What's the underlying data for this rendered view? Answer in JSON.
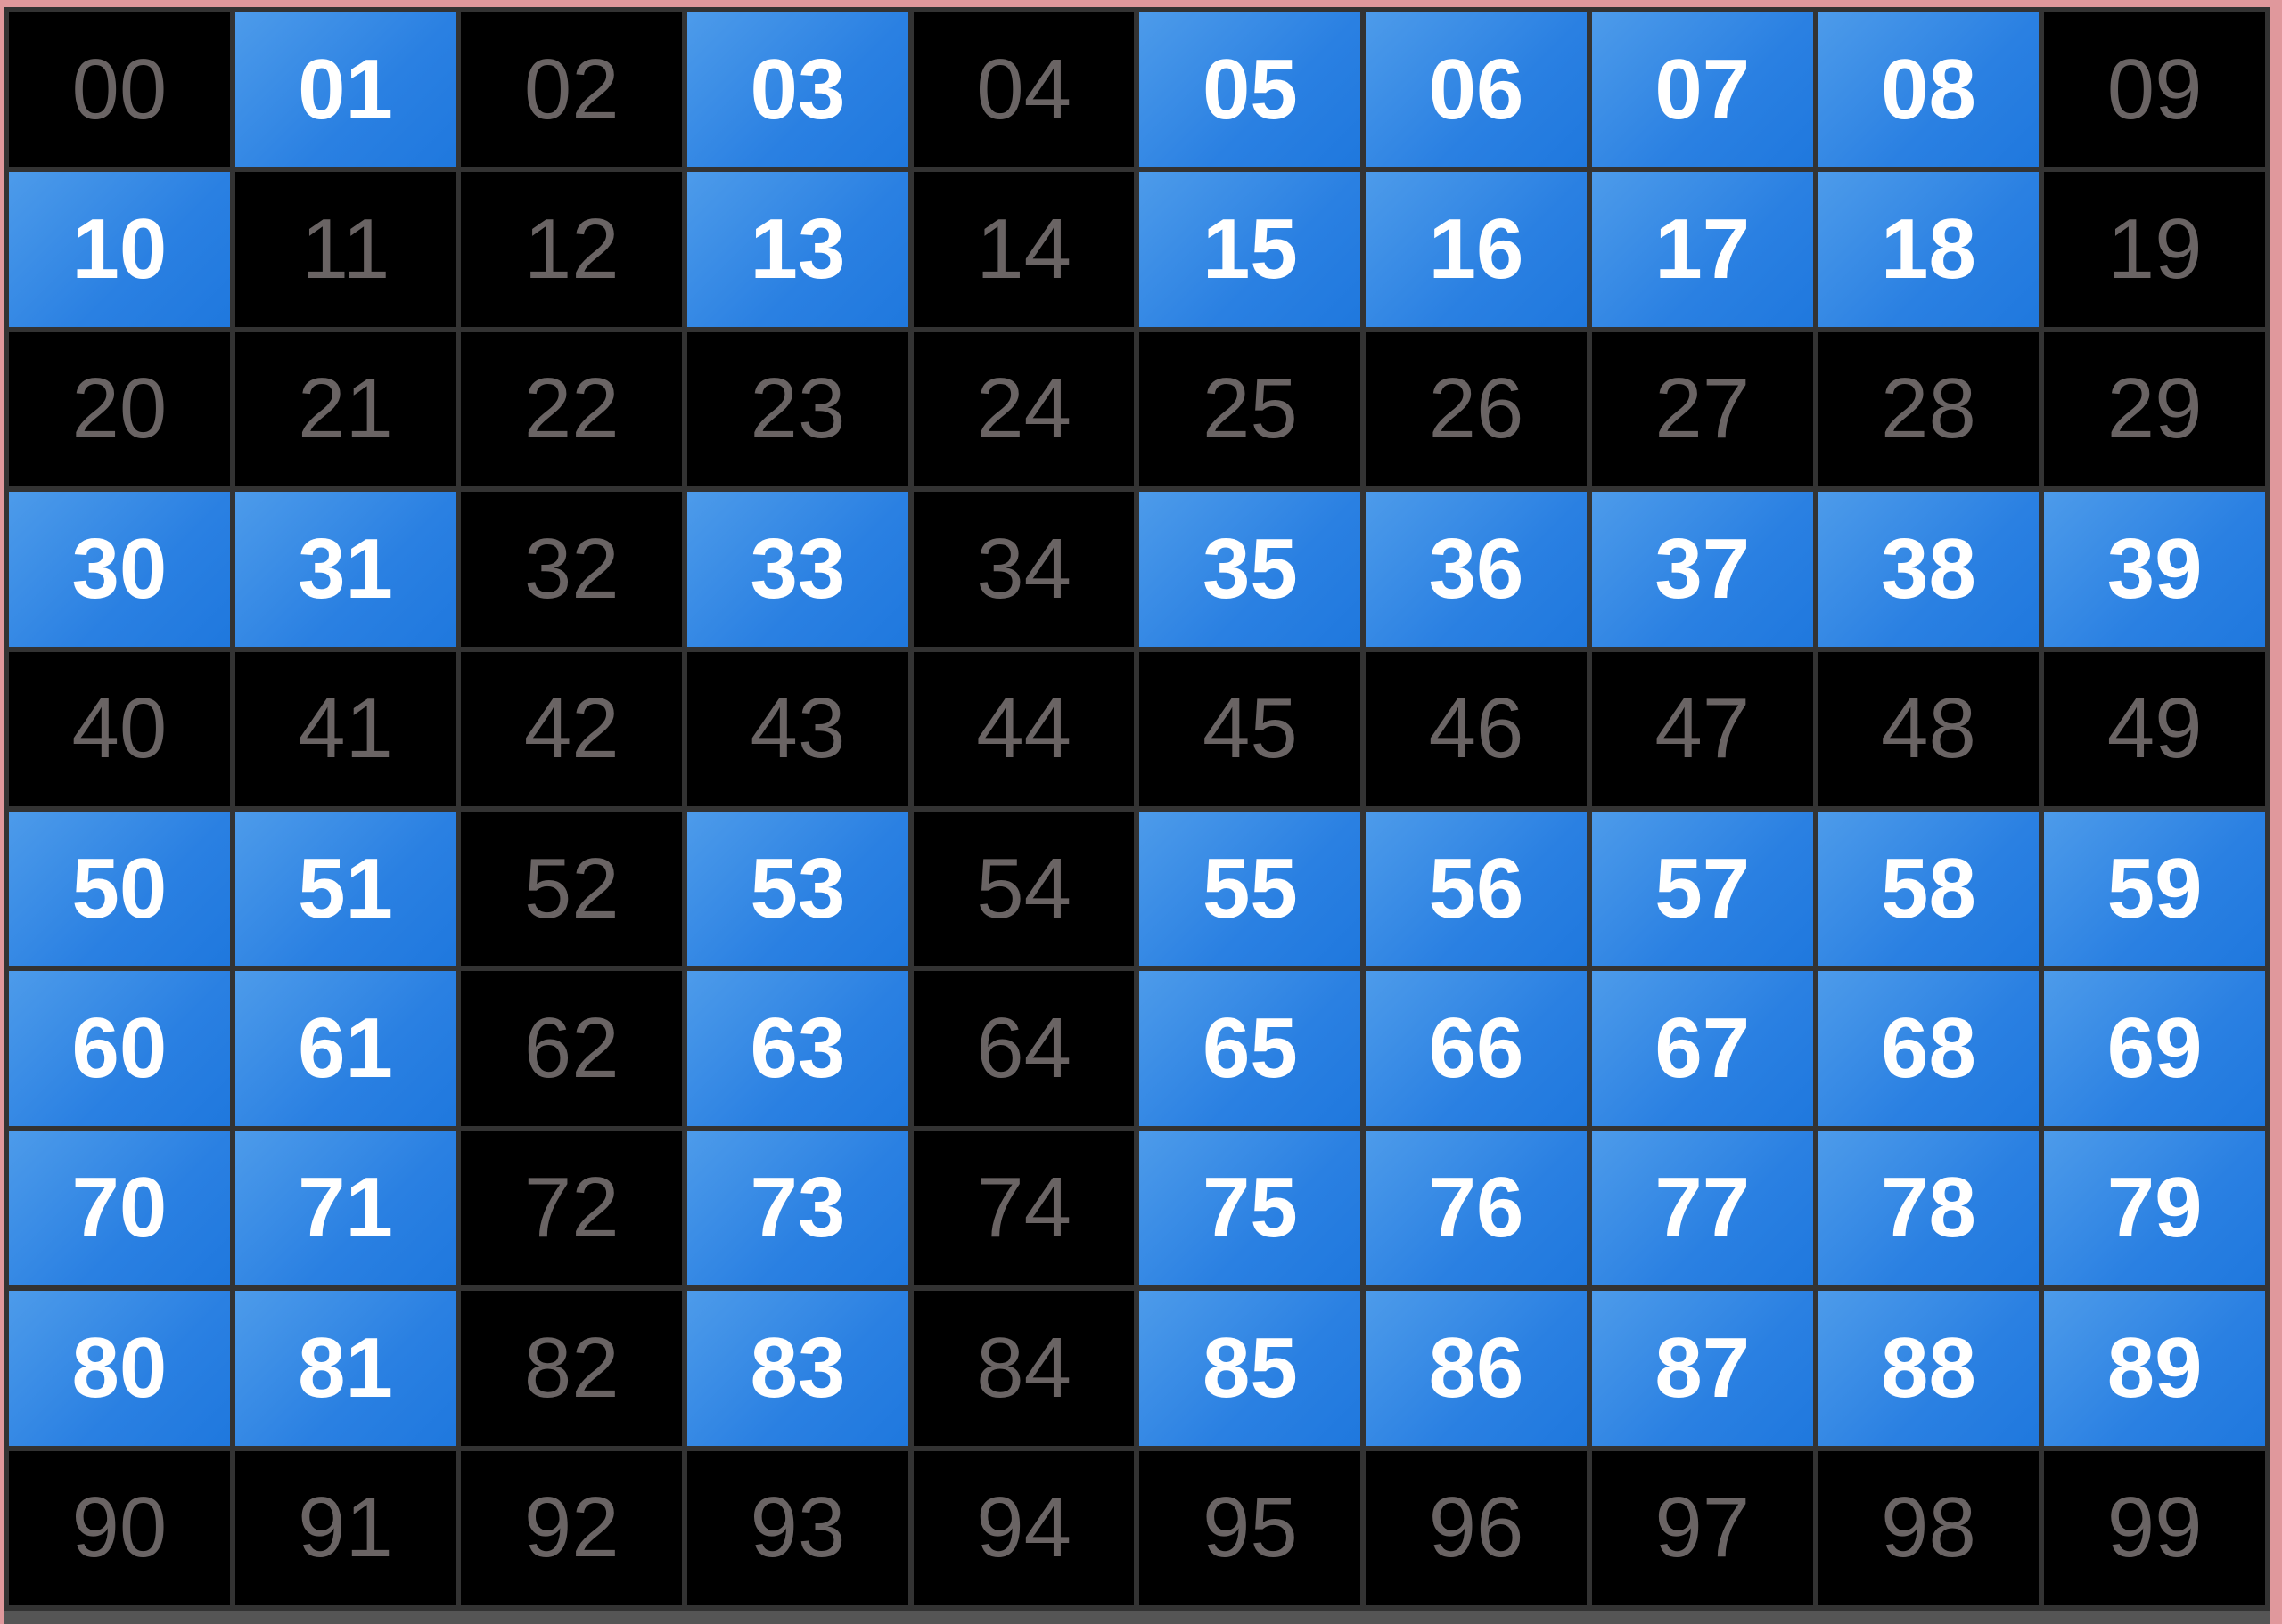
{
  "grid": {
    "colors": {
      "selected": "#2a80e2",
      "unselected": "#000000",
      "selected_text": "#ffffff",
      "unselected_text": "#6a6464"
    },
    "cells": [
      {
        "label": "00",
        "selected": false
      },
      {
        "label": "01",
        "selected": true
      },
      {
        "label": "02",
        "selected": false
      },
      {
        "label": "03",
        "selected": true
      },
      {
        "label": "04",
        "selected": false
      },
      {
        "label": "05",
        "selected": true
      },
      {
        "label": "06",
        "selected": true
      },
      {
        "label": "07",
        "selected": true
      },
      {
        "label": "08",
        "selected": true
      },
      {
        "label": "09",
        "selected": false
      },
      {
        "label": "10",
        "selected": true
      },
      {
        "label": "11",
        "selected": false
      },
      {
        "label": "12",
        "selected": false
      },
      {
        "label": "13",
        "selected": true
      },
      {
        "label": "14",
        "selected": false
      },
      {
        "label": "15",
        "selected": true
      },
      {
        "label": "16",
        "selected": true
      },
      {
        "label": "17",
        "selected": true
      },
      {
        "label": "18",
        "selected": true
      },
      {
        "label": "19",
        "selected": false
      },
      {
        "label": "20",
        "selected": false
      },
      {
        "label": "21",
        "selected": false
      },
      {
        "label": "22",
        "selected": false
      },
      {
        "label": "23",
        "selected": false
      },
      {
        "label": "24",
        "selected": false
      },
      {
        "label": "25",
        "selected": false
      },
      {
        "label": "26",
        "selected": false
      },
      {
        "label": "27",
        "selected": false
      },
      {
        "label": "28",
        "selected": false
      },
      {
        "label": "29",
        "selected": false
      },
      {
        "label": "30",
        "selected": true
      },
      {
        "label": "31",
        "selected": true
      },
      {
        "label": "32",
        "selected": false
      },
      {
        "label": "33",
        "selected": true
      },
      {
        "label": "34",
        "selected": false
      },
      {
        "label": "35",
        "selected": true
      },
      {
        "label": "36",
        "selected": true
      },
      {
        "label": "37",
        "selected": true
      },
      {
        "label": "38",
        "selected": true
      },
      {
        "label": "39",
        "selected": true
      },
      {
        "label": "40",
        "selected": false
      },
      {
        "label": "41",
        "selected": false
      },
      {
        "label": "42",
        "selected": false
      },
      {
        "label": "43",
        "selected": false
      },
      {
        "label": "44",
        "selected": false
      },
      {
        "label": "45",
        "selected": false
      },
      {
        "label": "46",
        "selected": false
      },
      {
        "label": "47",
        "selected": false
      },
      {
        "label": "48",
        "selected": false
      },
      {
        "label": "49",
        "selected": false
      },
      {
        "label": "50",
        "selected": true
      },
      {
        "label": "51",
        "selected": true
      },
      {
        "label": "52",
        "selected": false
      },
      {
        "label": "53",
        "selected": true
      },
      {
        "label": "54",
        "selected": false
      },
      {
        "label": "55",
        "selected": true
      },
      {
        "label": "56",
        "selected": true
      },
      {
        "label": "57",
        "selected": true
      },
      {
        "label": "58",
        "selected": true
      },
      {
        "label": "59",
        "selected": true
      },
      {
        "label": "60",
        "selected": true
      },
      {
        "label": "61",
        "selected": true
      },
      {
        "label": "62",
        "selected": false
      },
      {
        "label": "63",
        "selected": true
      },
      {
        "label": "64",
        "selected": false
      },
      {
        "label": "65",
        "selected": true
      },
      {
        "label": "66",
        "selected": true
      },
      {
        "label": "67",
        "selected": true
      },
      {
        "label": "68",
        "selected": true
      },
      {
        "label": "69",
        "selected": true
      },
      {
        "label": "70",
        "selected": true
      },
      {
        "label": "71",
        "selected": true
      },
      {
        "label": "72",
        "selected": false
      },
      {
        "label": "73",
        "selected": true
      },
      {
        "label": "74",
        "selected": false
      },
      {
        "label": "75",
        "selected": true
      },
      {
        "label": "76",
        "selected": true
      },
      {
        "label": "77",
        "selected": true
      },
      {
        "label": "78",
        "selected": true
      },
      {
        "label": "79",
        "selected": true
      },
      {
        "label": "80",
        "selected": true
      },
      {
        "label": "81",
        "selected": true
      },
      {
        "label": "82",
        "selected": false
      },
      {
        "label": "83",
        "selected": true
      },
      {
        "label": "84",
        "selected": false
      },
      {
        "label": "85",
        "selected": true
      },
      {
        "label": "86",
        "selected": true
      },
      {
        "label": "87",
        "selected": true
      },
      {
        "label": "88",
        "selected": true
      },
      {
        "label": "89",
        "selected": true
      },
      {
        "label": "90",
        "selected": false
      },
      {
        "label": "91",
        "selected": false
      },
      {
        "label": "92",
        "selected": false
      },
      {
        "label": "93",
        "selected": false
      },
      {
        "label": "94",
        "selected": false
      },
      {
        "label": "95",
        "selected": false
      },
      {
        "label": "96",
        "selected": false
      },
      {
        "label": "97",
        "selected": false
      },
      {
        "label": "98",
        "selected": false
      },
      {
        "label": "99",
        "selected": false
      }
    ]
  }
}
